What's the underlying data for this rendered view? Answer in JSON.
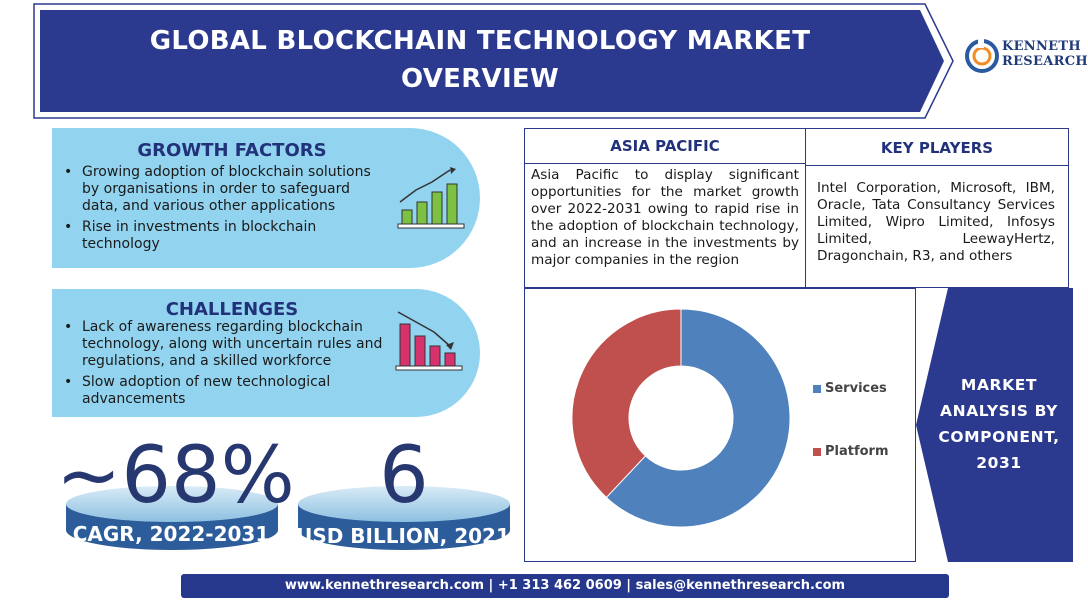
{
  "header": {
    "title_line1": "GLOBAL BLOCKCHAIN TECHNOLOGY MARKET",
    "title_line2": "OVERVIEW"
  },
  "logo": {
    "line1": "KENNETH",
    "line2": "RESEARCH"
  },
  "growth_factors": {
    "title": "GROWTH FACTORS",
    "bullets": [
      "Growing adoption of blockchain solutions by organisations in order to safeguard data, and various other applications",
      "Rise in investments in blockchain technology"
    ]
  },
  "challenges": {
    "title": "CHALLENGES",
    "bullets": [
      "Lack of awareness regarding blockchain technology, along with uncertain rules and regulations, and a skilled workforce",
      "Slow adoption of new technological advancements"
    ]
  },
  "stats": {
    "cagr_value": "~68%",
    "cagr_label": "CAGR, 2022-2031",
    "market_value": "6",
    "market_label": "USD BILLION, 2021"
  },
  "asia_pacific": {
    "title": "ASIA PACIFIC",
    "text": "Asia Pacific to display significant opportunities for the market growth over 2022-2031 owing to rapid rise in the adoption of blockchain technology, and an increase in the investments by major companies in the region"
  },
  "key_players": {
    "title": "KEY PLAYERS",
    "text": "Intel Corporation, Microsoft, IBM, Oracle, Tata Consultancy Services Limited, Wipro Limited, Infosys Limited, LeewayHertz, Dragonchain, R3, and others"
  },
  "market_panel": {
    "lines": [
      "MARKET",
      "ANALYSIS BY",
      "COMPONENT,",
      "2031"
    ]
  },
  "chart_data": {
    "type": "pie",
    "categories": [
      "Services",
      "Platform"
    ],
    "values": [
      62,
      38
    ],
    "colors": [
      "#4f81bd",
      "#c0504d"
    ],
    "legend_position": "right"
  },
  "footer": {
    "text": "www.kennethresearch.com | +1 313 462 0609 | sales@kennethresearch.com"
  },
  "colors": {
    "navy": "#2b3a8f",
    "light_blue": "#92d4ef",
    "title_blue": "#22327a"
  }
}
